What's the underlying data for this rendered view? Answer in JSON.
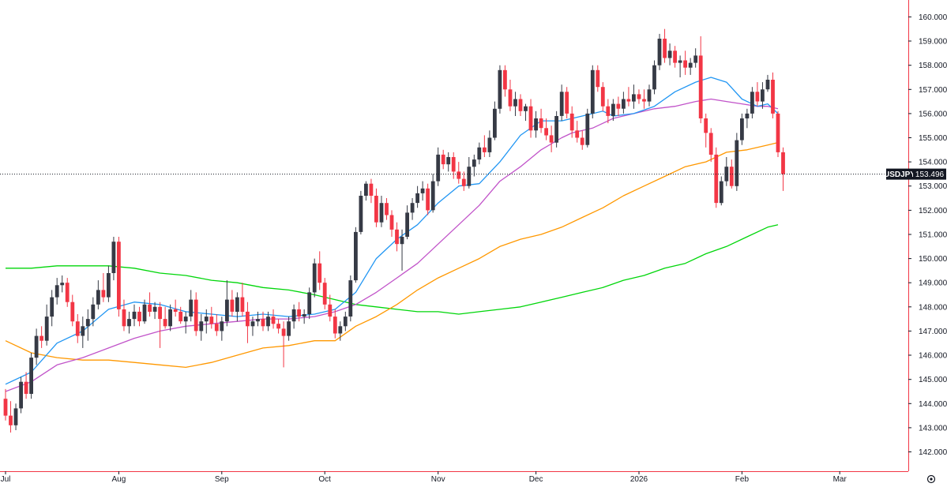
{
  "chart_data": {
    "type": "candlestick",
    "symbol": "USDJPY",
    "last_price": "153.496",
    "last_value": 153.496,
    "y_ticks": [
      "160.000",
      "159.000",
      "158.000",
      "157.000",
      "156.000",
      "155.000",
      "154.000",
      "153.000",
      "152.000",
      "151.000",
      "150.000",
      "149.000",
      "148.000",
      "147.000",
      "146.000",
      "145.000",
      "144.000",
      "143.000",
      "142.000"
    ],
    "y_tick_values": [
      160,
      159,
      158,
      157,
      156,
      155,
      154,
      153,
      152,
      151,
      150,
      149,
      148,
      147,
      146,
      145,
      144,
      143,
      142
    ],
    "ylim": [
      141.2,
      160.7
    ],
    "x_ticks": [
      "Jul",
      "Aug",
      "Sep",
      "Oct",
      "Nov",
      "Dec",
      "2026",
      "Feb",
      "Mar"
    ],
    "x_tick_bars": [
      0,
      22,
      42,
      62,
      84,
      103,
      123,
      143,
      162
    ],
    "bar_count": 163,
    "colors": {
      "up": "#363a45",
      "down": "#f23645",
      "ma_blue": "#2196f3",
      "ma_purple": "#c153c9",
      "ma_orange": "#ff9800",
      "ma_green": "#00d60a",
      "axis_line": "#f23645",
      "label_bg": "#131722"
    },
    "candles": [
      [
        144.2,
        144.6,
        143.3,
        143.5
      ],
      [
        143.5,
        144.1,
        142.8,
        143.1
      ],
      [
        143.1,
        144.0,
        142.9,
        143.8
      ],
      [
        143.8,
        145.1,
        143.6,
        144.9
      ],
      [
        144.9,
        145.3,
        144.2,
        144.4
      ],
      [
        144.4,
        146.1,
        144.2,
        145.9
      ],
      [
        145.9,
        147.1,
        145.6,
        146.8
      ],
      [
        146.8,
        147.2,
        146.3,
        146.6
      ],
      [
        146.6,
        148.1,
        146.4,
        147.6
      ],
      [
        147.6,
        148.7,
        147.2,
        148.4
      ],
      [
        148.4,
        149.2,
        148.1,
        148.9
      ],
      [
        148.9,
        149.3,
        148.6,
        149.0
      ],
      [
        149.0,
        149.2,
        148.0,
        148.2
      ],
      [
        148.2,
        148.5,
        147.2,
        147.4
      ],
      [
        147.4,
        147.7,
        146.5,
        146.8
      ],
      [
        146.8,
        147.6,
        146.3,
        147.2
      ],
      [
        147.2,
        147.9,
        146.6,
        147.5
      ],
      [
        147.5,
        148.4,
        147.2,
        148.1
      ],
      [
        148.1,
        149.1,
        147.9,
        148.7
      ],
      [
        148.7,
        149.4,
        148.2,
        148.4
      ],
      [
        148.4,
        149.7,
        148.2,
        149.4
      ],
      [
        149.4,
        150.9,
        149.1,
        150.7
      ],
      [
        150.7,
        150.9,
        147.6,
        147.9
      ],
      [
        147.9,
        148.3,
        147.0,
        147.2
      ],
      [
        147.2,
        147.8,
        146.9,
        147.5
      ],
      [
        147.5,
        148.1,
        147.2,
        147.8
      ],
      [
        147.8,
        148.0,
        147.2,
        147.4
      ],
      [
        147.4,
        148.3,
        147.3,
        148.1
      ],
      [
        148.1,
        148.6,
        147.6,
        147.8
      ],
      [
        147.8,
        148.2,
        147.5,
        148.0
      ],
      [
        148.0,
        148.2,
        146.3,
        147.5
      ],
      [
        147.5,
        148.0,
        147.1,
        147.2
      ],
      [
        147.2,
        148.1,
        147.0,
        147.9
      ],
      [
        147.9,
        148.3,
        147.6,
        147.8
      ],
      [
        147.8,
        148.0,
        147.3,
        147.4
      ],
      [
        147.4,
        147.8,
        146.9,
        147.6
      ],
      [
        147.6,
        148.7,
        147.4,
        148.3
      ],
      [
        148.3,
        148.6,
        146.8,
        147.0
      ],
      [
        147.0,
        147.7,
        146.6,
        147.4
      ],
      [
        147.4,
        147.9,
        146.9,
        147.6
      ],
      [
        147.6,
        148.0,
        147.1,
        147.3
      ],
      [
        147.3,
        147.7,
        146.8,
        147.0
      ],
      [
        147.0,
        147.6,
        146.6,
        147.4
      ],
      [
        147.4,
        149.1,
        147.2,
        148.3
      ],
      [
        148.3,
        148.7,
        147.6,
        147.8
      ],
      [
        147.8,
        148.6,
        147.4,
        148.4
      ],
      [
        148.4,
        149.0,
        147.6,
        147.8
      ],
      [
        147.8,
        148.2,
        146.5,
        147.2
      ],
      [
        147.2,
        147.6,
        146.8,
        147.4
      ],
      [
        147.4,
        147.8,
        147.2,
        147.5
      ],
      [
        147.5,
        147.8,
        147.0,
        147.2
      ],
      [
        147.2,
        147.8,
        147.0,
        147.6
      ],
      [
        147.6,
        147.9,
        147.1,
        147.3
      ],
      [
        147.3,
        147.5,
        146.9,
        147.1
      ],
      [
        147.1,
        147.4,
        145.5,
        146.8
      ],
      [
        146.8,
        147.6,
        146.6,
        147.4
      ],
      [
        147.4,
        148.1,
        147.1,
        147.9
      ],
      [
        147.9,
        148.2,
        147.4,
        147.6
      ],
      [
        147.6,
        147.9,
        147.3,
        147.7
      ],
      [
        147.7,
        148.8,
        147.5,
        148.6
      ],
      [
        148.6,
        150.0,
        148.4,
        149.8
      ],
      [
        149.8,
        150.3,
        148.7,
        149.0
      ],
      [
        149.0,
        149.2,
        147.9,
        148.1
      ],
      [
        148.1,
        148.5,
        147.4,
        147.6
      ],
      [
        147.6,
        147.9,
        146.7,
        146.9
      ],
      [
        146.9,
        147.4,
        146.6,
        147.2
      ],
      [
        147.2,
        147.8,
        147.0,
        147.6
      ],
      [
        147.6,
        149.3,
        147.4,
        149.1
      ],
      [
        149.1,
        151.3,
        149.0,
        151.1
      ],
      [
        151.1,
        152.8,
        151.0,
        152.6
      ],
      [
        152.6,
        153.2,
        152.4,
        153.1
      ],
      [
        153.1,
        153.3,
        152.3,
        152.6
      ],
      [
        152.6,
        152.9,
        151.3,
        151.5
      ],
      [
        151.5,
        152.6,
        151.3,
        152.3
      ],
      [
        152.3,
        152.5,
        151.6,
        151.8
      ],
      [
        151.8,
        152.0,
        150.9,
        151.2
      ],
      [
        151.2,
        151.5,
        150.3,
        150.6
      ],
      [
        150.6,
        151.2,
        149.5,
        150.9
      ],
      [
        150.9,
        152.2,
        150.8,
        151.9
      ],
      [
        151.9,
        152.5,
        151.6,
        152.3
      ],
      [
        152.3,
        153.0,
        152.1,
        152.7
      ],
      [
        152.7,
        153.2,
        152.4,
        152.9
      ],
      [
        152.9,
        153.1,
        151.8,
        152.0
      ],
      [
        152.0,
        153.5,
        151.9,
        153.2
      ],
      [
        153.2,
        154.6,
        153.0,
        154.3
      ],
      [
        154.3,
        154.5,
        153.7,
        153.9
      ],
      [
        153.9,
        154.4,
        153.6,
        154.2
      ],
      [
        154.2,
        154.4,
        153.3,
        153.6
      ],
      [
        153.6,
        154.0,
        153.1,
        153.3
      ],
      [
        153.3,
        153.6,
        152.8,
        153.0
      ],
      [
        153.0,
        154.2,
        152.9,
        153.8
      ],
      [
        153.8,
        154.3,
        153.4,
        154.1
      ],
      [
        154.1,
        154.8,
        153.9,
        154.6
      ],
      [
        154.6,
        155.1,
        154.2,
        154.4
      ],
      [
        154.4,
        155.3,
        154.2,
        155.0
      ],
      [
        155.0,
        156.5,
        154.9,
        156.2
      ],
      [
        156.2,
        158.0,
        156.0,
        157.8
      ],
      [
        157.8,
        158.0,
        156.7,
        157.0
      ],
      [
        157.0,
        157.4,
        156.1,
        156.3
      ],
      [
        156.3,
        156.9,
        155.9,
        156.6
      ],
      [
        156.6,
        156.8,
        155.9,
        156.1
      ],
      [
        156.1,
        156.4,
        155.7,
        156.3
      ],
      [
        156.3,
        156.6,
        155.0,
        155.3
      ],
      [
        155.3,
        156.1,
        155.0,
        155.8
      ],
      [
        155.8,
        156.2,
        155.2,
        155.4
      ],
      [
        155.4,
        155.8,
        154.9,
        155.1
      ],
      [
        155.1,
        155.5,
        154.4,
        154.8
      ],
      [
        154.8,
        156.1,
        154.6,
        155.9
      ],
      [
        155.9,
        157.2,
        155.7,
        156.9
      ],
      [
        156.9,
        157.1,
        155.8,
        156.0
      ],
      [
        156.0,
        156.3,
        155.0,
        155.3
      ],
      [
        155.3,
        155.7,
        154.8,
        155.0
      ],
      [
        155.0,
        155.3,
        154.5,
        154.7
      ],
      [
        154.7,
        156.2,
        154.6,
        156.0
      ],
      [
        156.0,
        158.0,
        155.8,
        157.8
      ],
      [
        157.8,
        158.0,
        156.9,
        157.1
      ],
      [
        157.1,
        157.3,
        156.1,
        156.3
      ],
      [
        156.3,
        156.6,
        155.6,
        155.9
      ],
      [
        155.9,
        156.6,
        155.7,
        156.4
      ],
      [
        156.4,
        156.7,
        155.9,
        156.2
      ],
      [
        156.2,
        156.9,
        156.0,
        156.6
      ],
      [
        156.6,
        157.1,
        156.3,
        156.5
      ],
      [
        156.5,
        157.2,
        156.2,
        156.8
      ],
      [
        156.8,
        157.0,
        156.4,
        156.6
      ],
      [
        156.6,
        157.0,
        156.2,
        156.5
      ],
      [
        156.5,
        157.2,
        156.3,
        157.0
      ],
      [
        157.0,
        158.2,
        156.8,
        158.0
      ],
      [
        158.0,
        159.3,
        157.8,
        159.1
      ],
      [
        159.1,
        159.5,
        158.1,
        158.3
      ],
      [
        158.3,
        158.9,
        158.0,
        158.6
      ],
      [
        158.6,
        158.8,
        157.9,
        158.1
      ],
      [
        158.1,
        158.4,
        157.5,
        158.2
      ],
      [
        158.2,
        158.6,
        157.6,
        157.9
      ],
      [
        157.9,
        158.3,
        157.6,
        158.1
      ],
      [
        158.1,
        158.7,
        157.9,
        158.4
      ],
      [
        158.4,
        159.2,
        155.6,
        155.8
      ],
      [
        155.8,
        156.0,
        154.6,
        155.2
      ],
      [
        155.2,
        155.4,
        154.0,
        154.3
      ],
      [
        154.3,
        154.6,
        152.1,
        152.3
      ],
      [
        152.3,
        153.4,
        152.2,
        153.2
      ],
      [
        153.2,
        154.2,
        153.0,
        153.8
      ],
      [
        153.8,
        154.1,
        152.9,
        153.0
      ],
      [
        153.0,
        155.2,
        152.8,
        154.9
      ],
      [
        154.9,
        156.0,
        154.7,
        155.8
      ],
      [
        155.8,
        156.2,
        155.4,
        156.0
      ],
      [
        156.0,
        157.1,
        155.8,
        156.9
      ],
      [
        156.9,
        157.3,
        156.3,
        156.5
      ],
      [
        156.5,
        157.3,
        156.2,
        157.0
      ],
      [
        157.0,
        157.6,
        156.9,
        157.4
      ],
      [
        157.4,
        157.7,
        155.8,
        156.0
      ],
      [
        156.0,
        156.1,
        154.2,
        154.4
      ],
      [
        154.4,
        154.6,
        152.8,
        153.5
      ]
    ],
    "ma_blue": [
      [
        0,
        144.8
      ],
      [
        5,
        145.3
      ],
      [
        10,
        146.5
      ],
      [
        15,
        147.0
      ],
      [
        20,
        147.9
      ],
      [
        25,
        148.2
      ],
      [
        30,
        148.1
      ],
      [
        35,
        147.8
      ],
      [
        40,
        147.7
      ],
      [
        45,
        147.6
      ],
      [
        50,
        147.7
      ],
      [
        55,
        147.6
      ],
      [
        60,
        147.7
      ],
      [
        64,
        147.9
      ],
      [
        68,
        148.6
      ],
      [
        72,
        150.0
      ],
      [
        76,
        150.8
      ],
      [
        80,
        151.4
      ],
      [
        84,
        152.3
      ],
      [
        88,
        153.0
      ],
      [
        92,
        153.1
      ],
      [
        96,
        154.0
      ],
      [
        100,
        155.1
      ],
      [
        104,
        155.7
      ],
      [
        108,
        155.7
      ],
      [
        112,
        155.9
      ],
      [
        116,
        156.1
      ],
      [
        118,
        155.9
      ],
      [
        122,
        156.0
      ],
      [
        126,
        156.3
      ],
      [
        130,
        156.9
      ],
      [
        134,
        157.3
      ],
      [
        137,
        157.5
      ],
      [
        140,
        157.3
      ],
      [
        143,
        156.6
      ],
      [
        146,
        156.3
      ],
      [
        148,
        156.4
      ],
      [
        150,
        156.0
      ]
    ],
    "ma_purple": [
      [
        0,
        144.5
      ],
      [
        5,
        144.9
      ],
      [
        10,
        145.6
      ],
      [
        15,
        145.9
      ],
      [
        20,
        146.3
      ],
      [
        25,
        146.7
      ],
      [
        30,
        147.0
      ],
      [
        35,
        147.2
      ],
      [
        40,
        147.3
      ],
      [
        45,
        147.4
      ],
      [
        50,
        147.5
      ],
      [
        55,
        147.5
      ],
      [
        60,
        147.6
      ],
      [
        64,
        147.8
      ],
      [
        68,
        148.1
      ],
      [
        72,
        148.6
      ],
      [
        76,
        149.2
      ],
      [
        80,
        149.8
      ],
      [
        84,
        150.6
      ],
      [
        88,
        151.4
      ],
      [
        92,
        152.2
      ],
      [
        96,
        153.2
      ],
      [
        100,
        153.8
      ],
      [
        104,
        154.5
      ],
      [
        108,
        155.0
      ],
      [
        110,
        155.2
      ],
      [
        114,
        155.4
      ],
      [
        118,
        155.8
      ],
      [
        122,
        156.0
      ],
      [
        126,
        156.2
      ],
      [
        130,
        156.3
      ],
      [
        134,
        156.5
      ],
      [
        137,
        156.6
      ],
      [
        140,
        156.5
      ],
      [
        143,
        156.4
      ],
      [
        146,
        156.3
      ],
      [
        148,
        156.3
      ],
      [
        150,
        156.2
      ]
    ],
    "ma_orange": [
      [
        0,
        146.6
      ],
      [
        5,
        146.1
      ],
      [
        10,
        145.9
      ],
      [
        15,
        145.8
      ],
      [
        20,
        145.8
      ],
      [
        25,
        145.7
      ],
      [
        30,
        145.6
      ],
      [
        35,
        145.5
      ],
      [
        40,
        145.7
      ],
      [
        45,
        146.0
      ],
      [
        50,
        146.3
      ],
      [
        55,
        146.4
      ],
      [
        60,
        146.6
      ],
      [
        64,
        146.6
      ],
      [
        68,
        147.2
      ],
      [
        72,
        147.6
      ],
      [
        76,
        148.1
      ],
      [
        80,
        148.7
      ],
      [
        84,
        149.2
      ],
      [
        88,
        149.6
      ],
      [
        92,
        150.0
      ],
      [
        96,
        150.5
      ],
      [
        100,
        150.8
      ],
      [
        104,
        151.0
      ],
      [
        108,
        151.3
      ],
      [
        112,
        151.7
      ],
      [
        116,
        152.1
      ],
      [
        120,
        152.6
      ],
      [
        124,
        153.0
      ],
      [
        128,
        153.4
      ],
      [
        132,
        153.8
      ],
      [
        136,
        154.0
      ],
      [
        140,
        154.4
      ],
      [
        144,
        154.5
      ],
      [
        148,
        154.7
      ],
      [
        150,
        154.8
      ]
    ],
    "ma_green": [
      [
        0,
        149.6
      ],
      [
        5,
        149.6
      ],
      [
        10,
        149.7
      ],
      [
        15,
        149.7
      ],
      [
        20,
        149.7
      ],
      [
        25,
        149.6
      ],
      [
        30,
        149.4
      ],
      [
        35,
        149.3
      ],
      [
        40,
        149.1
      ],
      [
        45,
        149.0
      ],
      [
        50,
        148.8
      ],
      [
        55,
        148.7
      ],
      [
        60,
        148.5
      ],
      [
        64,
        148.3
      ],
      [
        68,
        148.1
      ],
      [
        72,
        148.0
      ],
      [
        76,
        147.9
      ],
      [
        80,
        147.8
      ],
      [
        84,
        147.8
      ],
      [
        88,
        147.7
      ],
      [
        92,
        147.8
      ],
      [
        96,
        147.9
      ],
      [
        100,
        148.0
      ],
      [
        104,
        148.2
      ],
      [
        108,
        148.4
      ],
      [
        112,
        148.6
      ],
      [
        116,
        148.8
      ],
      [
        120,
        149.1
      ],
      [
        124,
        149.3
      ],
      [
        128,
        149.6
      ],
      [
        132,
        149.8
      ],
      [
        136,
        150.2
      ],
      [
        140,
        150.5
      ],
      [
        144,
        150.9
      ],
      [
        148,
        151.3
      ],
      [
        150,
        151.4
      ]
    ]
  }
}
